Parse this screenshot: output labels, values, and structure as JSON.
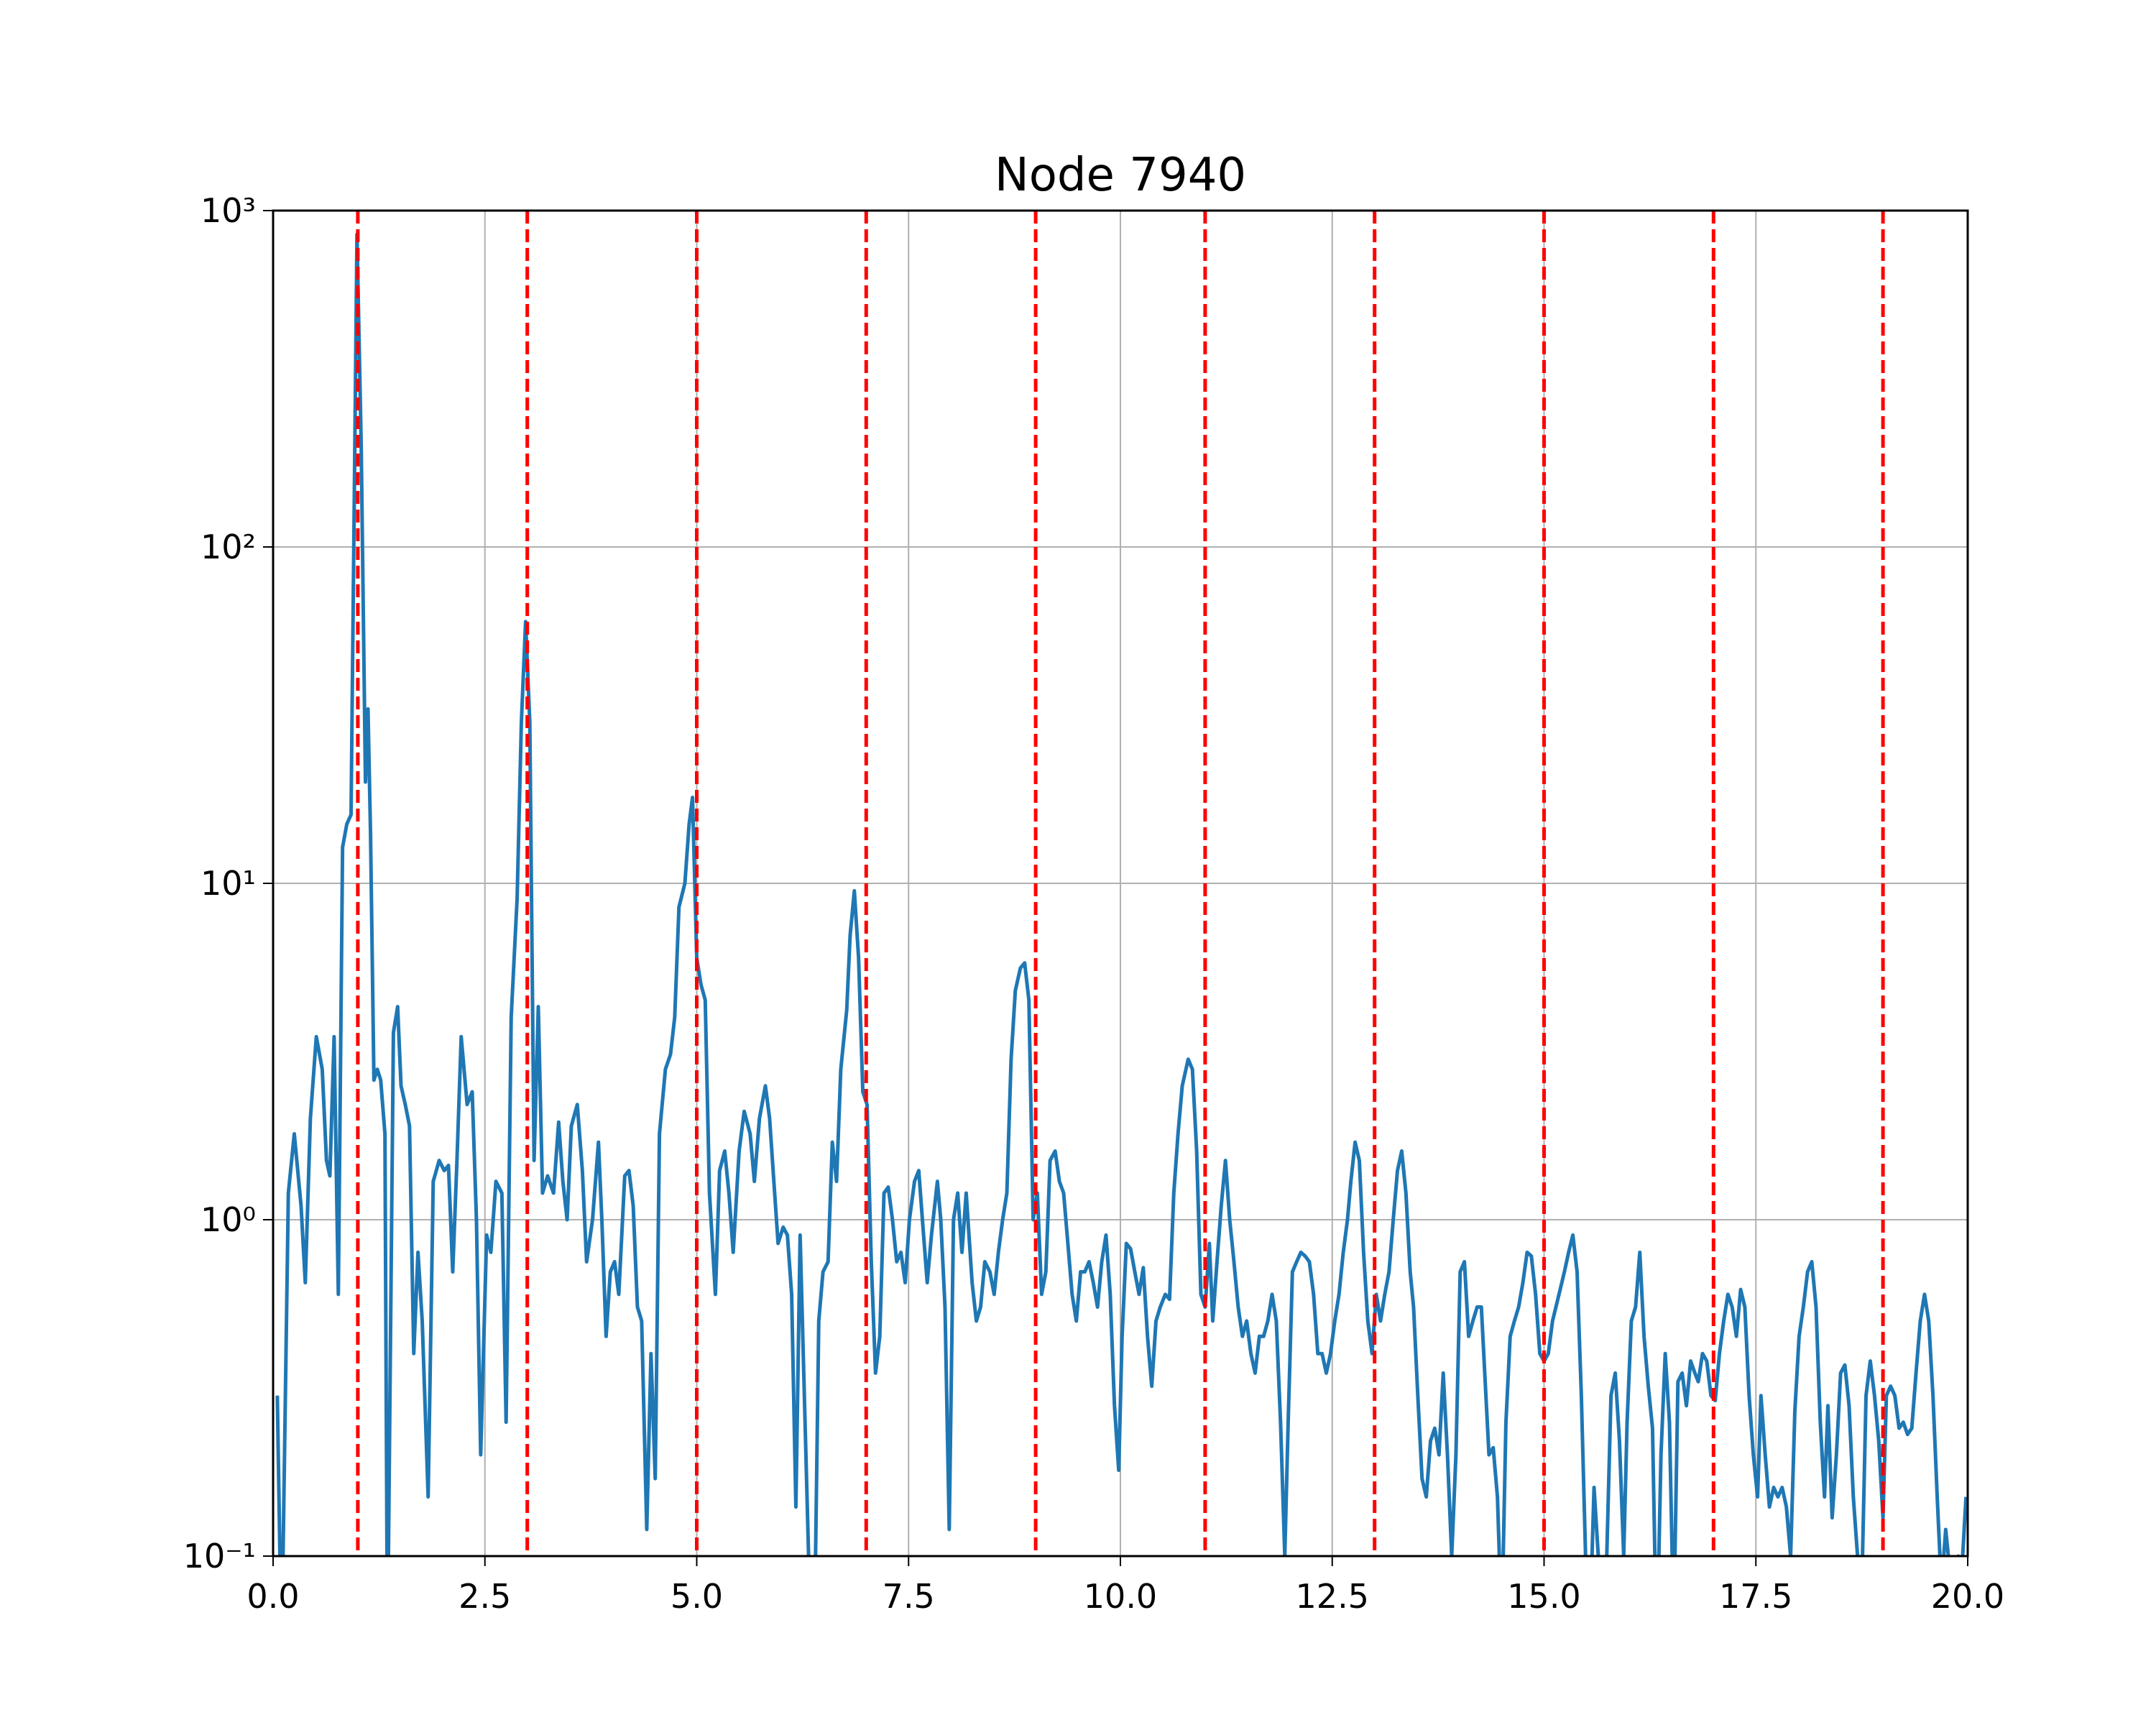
{
  "chart_data": {
    "type": "line",
    "title": "Node 7940",
    "x": [
      0.05,
      0.1,
      0.18,
      0.25,
      0.33,
      0.38,
      0.44,
      0.51,
      0.58,
      0.63,
      0.67,
      0.72,
      0.77,
      0.82,
      0.87,
      0.92,
      0.99,
      1.04,
      1.09,
      1.12,
      1.15,
      1.19,
      1.23,
      1.27,
      1.32,
      1.35,
      1.42,
      1.47,
      1.51,
      1.56,
      1.61,
      1.66,
      1.71,
      1.76,
      1.83,
      1.89,
      1.96,
      2.02,
      2.07,
      2.12,
      2.17,
      2.22,
      2.29,
      2.35,
      2.4,
      2.45,
      2.52,
      2.57,
      2.63,
      2.7,
      2.75,
      2.81,
      2.88,
      2.93,
      2.98,
      3.03,
      3.08,
      3.13,
      3.18,
      3.24,
      3.31,
      3.37,
      3.42,
      3.47,
      3.52,
      3.59,
      3.65,
      3.7,
      3.77,
      3.84,
      3.88,
      3.93,
      3.98,
      4.03,
      4.08,
      4.15,
      4.2,
      4.25,
      4.3,
      4.35,
      4.41,
      4.46,
      4.51,
      4.56,
      4.63,
      4.69,
      4.74,
      4.79,
      4.86,
      4.91,
      4.95,
      5.0,
      5.05,
      5.1,
      5.15,
      5.22,
      5.27,
      5.33,
      5.38,
      5.43,
      5.5,
      5.56,
      5.63,
      5.68,
      5.74,
      5.81,
      5.86,
      5.91,
      5.96,
      6.02,
      6.07,
      6.12,
      6.17,
      6.22,
      6.27,
      6.32,
      6.39,
      6.44,
      6.49,
      6.55,
      6.6,
      6.65,
      6.7,
      6.77,
      6.81,
      6.86,
      6.91,
      6.96,
      7.01,
      7.06,
      7.11,
      7.16,
      7.21,
      7.26,
      7.31,
      7.36,
      7.41,
      7.46,
      7.51,
      7.57,
      7.62,
      7.67,
      7.72,
      7.77,
      7.84,
      7.88,
      7.93,
      7.98,
      8.03,
      8.08,
      8.13,
      8.18,
      8.25,
      8.3,
      8.35,
      8.4,
      8.46,
      8.51,
      8.56,
      8.61,
      8.66,
      8.71,
      8.76,
      8.82,
      8.87,
      8.92,
      8.97,
      9.02,
      9.07,
      9.12,
      9.17,
      9.23,
      9.28,
      9.33,
      9.38,
      9.43,
      9.48,
      9.53,
      9.58,
      9.63,
      9.68,
      9.73,
      9.78,
      9.83,
      9.88,
      9.93,
      9.98,
      10.02,
      10.07,
      10.12,
      10.17,
      10.22,
      10.27,
      10.32,
      10.37,
      10.42,
      10.47,
      10.53,
      10.58,
      10.63,
      10.68,
      10.73,
      10.8,
      10.85,
      10.9,
      10.95,
      11.0,
      11.05,
      11.09,
      11.14,
      11.19,
      11.24,
      11.29,
      11.34,
      11.39,
      11.44,
      11.49,
      11.54,
      11.59,
      11.64,
      11.69,
      11.74,
      11.79,
      11.84,
      11.89,
      11.94,
      11.98,
      12.03,
      12.08,
      12.13,
      12.18,
      12.23,
      12.28,
      12.33,
      12.38,
      12.43,
      12.48,
      12.53,
      12.58,
      12.63,
      12.68,
      12.72,
      12.77,
      12.82,
      12.87,
      12.92,
      12.97,
      13.02,
      13.07,
      13.12,
      13.17,
      13.22,
      13.27,
      13.32,
      13.37,
      13.42,
      13.46,
      13.51,
      13.56,
      13.61,
      13.66,
      13.71,
      13.76,
      13.81,
      13.86,
      13.91,
      13.96,
      14.01,
      14.06,
      14.11,
      14.16,
      14.21,
      14.26,
      14.3,
      14.35,
      14.4,
      14.45,
      14.5,
      14.55,
      14.6,
      14.65,
      14.7,
      14.75,
      14.8,
      14.85,
      14.9,
      14.95,
      15.0,
      15.05,
      15.1,
      15.14,
      15.19,
      15.24,
      15.29,
      15.34,
      15.39,
      15.44,
      15.49,
      15.54,
      15.59,
      15.64,
      15.69,
      15.74,
      15.79,
      15.84,
      15.89,
      15.94,
      15.98,
      16.03,
      16.08,
      16.13,
      16.18,
      16.23,
      16.28,
      16.33,
      16.38,
      16.43,
      16.48,
      16.53,
      16.58,
      16.63,
      16.68,
      16.73,
      16.78,
      16.82,
      16.87,
      16.92,
      16.97,
      17.02,
      17.07,
      17.12,
      17.17,
      17.22,
      17.27,
      17.32,
      17.37,
      17.42,
      17.47,
      17.52,
      17.56,
      17.61,
      17.66,
      17.71,
      17.76,
      17.81,
      17.86,
      17.91,
      17.96,
      18.01,
      18.06,
      18.11,
      18.16,
      18.21,
      18.26,
      18.31,
      18.35,
      18.4,
      18.45,
      18.5,
      18.55,
      18.6,
      18.65,
      18.7,
      18.75,
      18.8,
      18.85,
      18.9,
      18.95,
      19.0,
      19.04,
      19.09,
      19.14,
      19.19,
      19.24,
      19.29,
      19.34,
      19.39,
      19.44,
      19.49,
      19.54,
      19.59,
      19.64,
      19.69,
      19.74,
      19.79,
      19.84,
      19.89,
      19.93,
      19.98
    ],
    "values": [
      0.3,
      0.05,
      1.2,
      1.8,
      1.1,
      0.65,
      2.0,
      3.5,
      2.8,
      1.5,
      1.35,
      3.5,
      0.6,
      12.8,
      15,
      16,
      850,
      200,
      20,
      33,
      14,
      2.6,
      2.8,
      2.6,
      1.8,
      0.05,
      3.6,
      4.3,
      2.5,
      2.2,
      1.9,
      0.4,
      0.8,
      0.5,
      0.15,
      1.3,
      1.5,
      1.4,
      1.45,
      0.7,
      1.5,
      3.5,
      2.2,
      2.4,
      1.0,
      0.2,
      0.9,
      0.8,
      1.3,
      1.2,
      0.25,
      4.0,
      9,
      30,
      60,
      30,
      1.5,
      4.3,
      1.2,
      1.35,
      1.2,
      1.95,
      1.3,
      1.0,
      1.9,
      2.2,
      1.4,
      0.75,
      1.0,
      1.7,
      1.0,
      0.45,
      0.7,
      0.75,
      0.6,
      1.35,
      1.4,
      1.1,
      0.55,
      0.5,
      0.12,
      0.4,
      0.17,
      1.8,
      2.8,
      3.1,
      4.0,
      8.5,
      10,
      15,
      18,
      6,
      5,
      4.5,
      1.2,
      0.6,
      1.4,
      1.6,
      1.2,
      0.8,
      1.6,
      2.1,
      1.8,
      1.3,
      2.0,
      2.5,
      2.0,
      1.3,
      0.85,
      0.95,
      0.9,
      0.6,
      0.14,
      0.9,
      0.3,
      0.1,
      0.06,
      0.5,
      0.7,
      0.75,
      1.7,
      1.3,
      2.8,
      4.2,
      7,
      9.5,
      6,
      2.4,
      2.2,
      0.75,
      0.35,
      0.45,
      1.2,
      1.25,
      1.0,
      0.75,
      0.8,
      0.65,
      1.0,
      1.3,
      1.4,
      0.95,
      0.65,
      0.9,
      1.3,
      1.0,
      0.55,
      0.12,
      1.0,
      1.2,
      0.8,
      1.2,
      0.65,
      0.5,
      0.55,
      0.75,
      0.7,
      0.6,
      0.8,
      1.0,
      1.2,
      3.0,
      4.8,
      5.6,
      5.8,
      4.5,
      1.0,
      1.2,
      0.6,
      0.7,
      1.5,
      1.6,
      1.3,
      1.2,
      0.85,
      0.6,
      0.5,
      0.7,
      0.7,
      0.75,
      0.65,
      0.55,
      0.75,
      0.9,
      0.6,
      0.28,
      0.18,
      0.45,
      0.85,
      0.82,
      0.7,
      0.6,
      0.72,
      0.45,
      0.32,
      0.5,
      0.55,
      0.6,
      0.58,
      1.2,
      1.8,
      2.5,
      3.0,
      2.8,
      1.6,
      0.6,
      0.55,
      0.85,
      0.5,
      0.75,
      1.1,
      1.5,
      1.0,
      0.75,
      0.55,
      0.45,
      0.5,
      0.4,
      0.35,
      0.45,
      0.45,
      0.5,
      0.6,
      0.5,
      0.25,
      0.1,
      0.25,
      0.7,
      0.75,
      0.8,
      0.78,
      0.75,
      0.6,
      0.4,
      0.4,
      0.35,
      0.4,
      0.5,
      0.6,
      0.8,
      1.0,
      1.3,
      1.7,
      1.5,
      0.8,
      0.5,
      0.4,
      0.6,
      0.5,
      0.6,
      0.7,
      1.0,
      1.4,
      1.6,
      1.2,
      0.7,
      0.55,
      0.3,
      0.17,
      0.15,
      0.22,
      0.24,
      0.2,
      0.35,
      0.2,
      0.1,
      0.2,
      0.7,
      0.75,
      0.45,
      0.5,
      0.55,
      0.55,
      0.35,
      0.2,
      0.21,
      0.15,
      0.06,
      0.25,
      0.45,
      0.5,
      0.55,
      0.65,
      0.8,
      0.78,
      0.6,
      0.4,
      0.38,
      0.4,
      0.5,
      0.55,
      0.62,
      0.7,
      0.8,
      0.9,
      0.7,
      0.3,
      0.1,
      0.06,
      0.16,
      0.1,
      0.05,
      0.1,
      0.3,
      0.35,
      0.22,
      0.1,
      0.25,
      0.5,
      0.55,
      0.8,
      0.45,
      0.32,
      0.24,
      0.05,
      0.2,
      0.4,
      0.25,
      0.06,
      0.33,
      0.35,
      0.28,
      0.38,
      0.35,
      0.33,
      0.4,
      0.38,
      0.3,
      0.29,
      0.4,
      0.5,
      0.6,
      0.55,
      0.45,
      0.62,
      0.55,
      0.3,
      0.2,
      0.15,
      0.3,
      0.2,
      0.14,
      0.16,
      0.15,
      0.16,
      0.14,
      0.1,
      0.27,
      0.45,
      0.55,
      0.7,
      0.75,
      0.55,
      0.25,
      0.15,
      0.28,
      0.13,
      0.2,
      0.35,
      0.37,
      0.28,
      0.15,
      0.1,
      0.08,
      0.3,
      0.38,
      0.3,
      0.22,
      0.13,
      0.3,
      0.32,
      0.3,
      0.24,
      0.25,
      0.23,
      0.24,
      0.35,
      0.5,
      0.6,
      0.5,
      0.3,
      0.15,
      0.08,
      0.12,
      0.09,
      0.08,
      0.1,
      0.09,
      0.15
    ],
    "color": "#1f77b4",
    "vlines": [
      1,
      3,
      5,
      7,
      9,
      11,
      13,
      15,
      17,
      19
    ],
    "vline_color": "#ff0000",
    "xlim": [
      0,
      20
    ],
    "xticks": [
      {
        "value": 0,
        "label": "0.0"
      },
      2.5,
      {
        "value": 5,
        "label": "5.0"
      },
      7.5,
      {
        "value": 10,
        "label": "10.0"
      },
      12.5,
      {
        "value": 15,
        "label": "15.0"
      },
      17.5,
      {
        "value": 20,
        "label": "20.0"
      }
    ],
    "ylim": [
      0.1,
      1000
    ],
    "yscale": "log",
    "yticks": [
      {
        "value": 0.1,
        "label": "10⁻¹"
      },
      {
        "value": 1,
        "label": "10⁰"
      },
      {
        "value": 10,
        "label": "10¹"
      },
      {
        "value": 100,
        "label": "10²"
      },
      {
        "value": 1000,
        "label": "10³"
      }
    ],
    "grid": true
  }
}
